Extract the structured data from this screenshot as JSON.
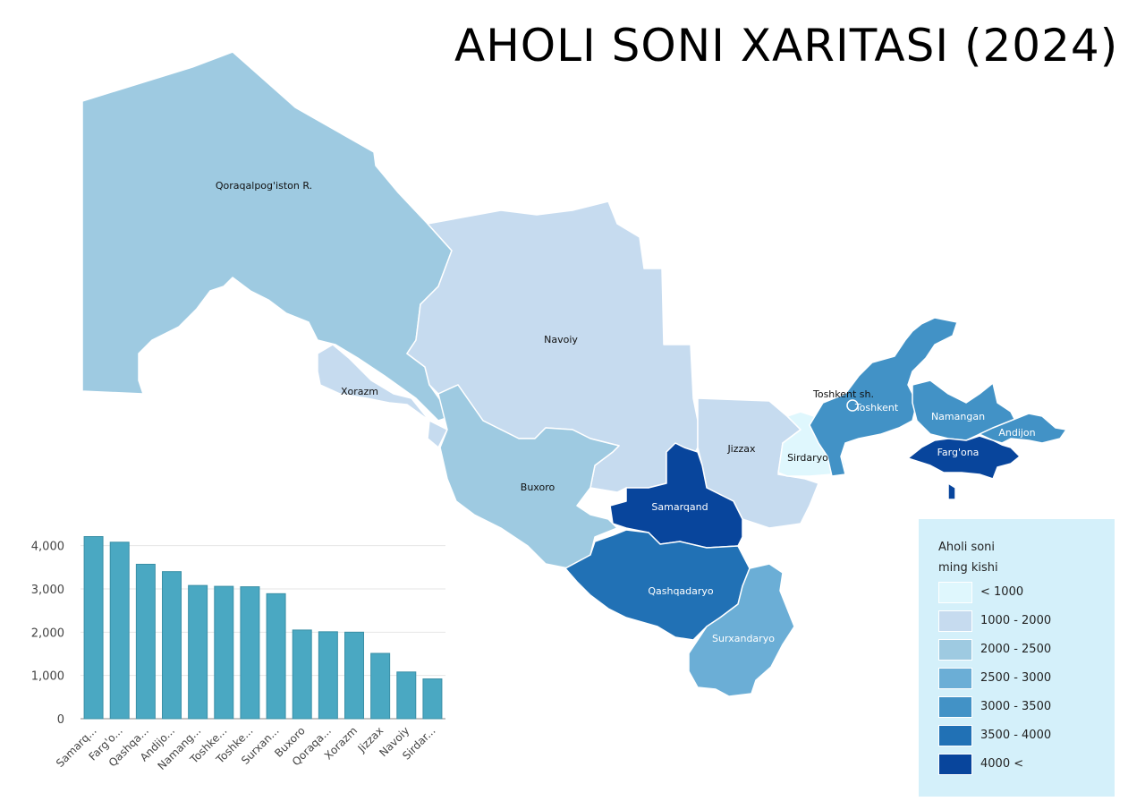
{
  "title": "AHOLI SONI XARITASI (2024)",
  "legend": {
    "title_line1": "Aholi soni",
    "title_line2": "ming kishi",
    "items": [
      {
        "label": "< 1000",
        "color": "#dff7fd"
      },
      {
        "label": "1000 - 2000",
        "color": "#c6dbef"
      },
      {
        "label": "2000 - 2500",
        "color": "#9ecae1"
      },
      {
        "label": "2500 - 3000",
        "color": "#6baed6"
      },
      {
        "label": "3000 - 3500",
        "color": "#4292c6"
      },
      {
        "label": "3500 - 4000",
        "color": "#2171b5"
      },
      {
        "label": "4000 <",
        "color": "#08459c"
      }
    ]
  },
  "regions": [
    {
      "name": "Qoraqalpog'iston R.",
      "color": "#9ecae1"
    },
    {
      "name": "Navoiy",
      "color": "#c6dbef"
    },
    {
      "name": "Xorazm",
      "color": "#c6dbef"
    },
    {
      "name": "Buxoro",
      "color": "#9ecae1"
    },
    {
      "name": "Jizzax",
      "color": "#c6dbef"
    },
    {
      "name": "Sirdaryo",
      "color": "#dff7fd"
    },
    {
      "name": "Samarqand",
      "color": "#08459c"
    },
    {
      "name": "Qashqadaryo",
      "color": "#2171b5"
    },
    {
      "name": "Surxandaryo",
      "color": "#6baed6"
    },
    {
      "name": "Toshkent sh.",
      "color": "#4292c6"
    },
    {
      "name": "Toshkent",
      "color": "#4292c6"
    },
    {
      "name": "Namangan",
      "color": "#4292c6"
    },
    {
      "name": "Andijon",
      "color": "#4292c6"
    },
    {
      "name": "Farg'ona",
      "color": "#08459c"
    }
  ],
  "chart_data": {
    "type": "bar",
    "categories": [
      "Samarq...",
      "Farg'o...",
      "Qashqa...",
      "Andijo...",
      "Namang...",
      "Toshke...",
      "Toshke...",
      "Surxan...",
      "Buxoro",
      "Qoraqa...",
      "Xorazm",
      "Jizzax",
      "Navoiy",
      "Sirdar..."
    ],
    "values": [
      4210,
      4080,
      3570,
      3400,
      3080,
      3060,
      3050,
      2890,
      2050,
      2010,
      2000,
      1510,
      1080,
      920
    ],
    "ylim": [
      0,
      4200
    ],
    "yticks": [
      0,
      1000,
      2000,
      3000,
      4000
    ],
    "ytick_labels": [
      "0",
      "1,000",
      "2,000",
      "3,000",
      "4,000"
    ],
    "bar_color": "#4aa8c2",
    "grid": true,
    "xlabel": "",
    "ylabel": "",
    "title": ""
  }
}
